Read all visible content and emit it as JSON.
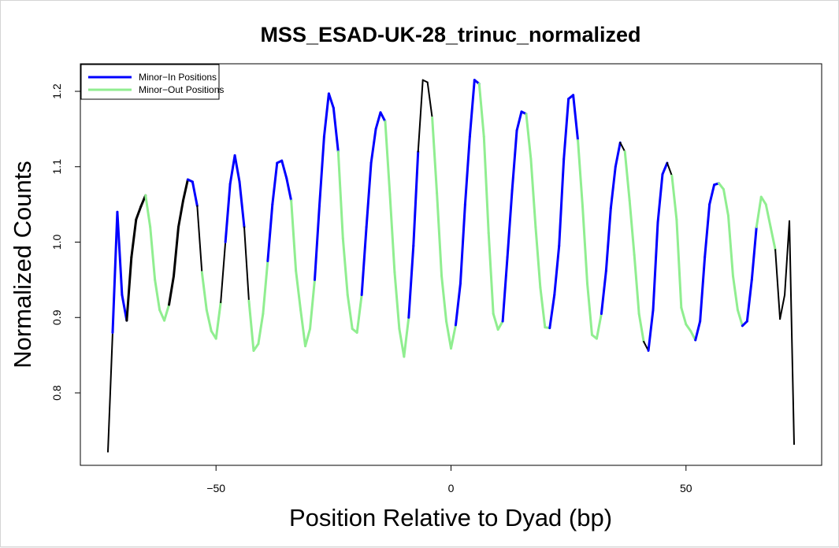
{
  "chart_data": {
    "type": "line",
    "title": "MSS_ESAD-UK-28_trinuc_normalized",
    "xlabel": "Position Relative to Dyad (bp)",
    "ylabel": "Normalized Counts",
    "xlim": [
      -73,
      73
    ],
    "ylim": [
      0.7,
      1.22
    ],
    "x_ticks": [
      -50,
      0,
      50
    ],
    "x_tick_labels": [
      "−50",
      "0",
      "50"
    ],
    "y_ticks": [
      0.8,
      0.9,
      1.0,
      1.1,
      1.2
    ],
    "y_tick_labels": [
      "0.8",
      "0.9",
      "1.0",
      "1.1",
      "1.2"
    ],
    "legend": {
      "position": "top-left",
      "entries": [
        {
          "label": "Minor−In Positions",
          "color": "#0000ff"
        },
        {
          "label": "Minor−Out Positions",
          "color": "#90ee90"
        }
      ]
    },
    "colors": {
      "minor_in": "#0000ff",
      "minor_out": "#90ee90",
      "other": "#000000"
    },
    "x": [
      -73,
      -72,
      -71,
      -70,
      -69,
      -68,
      -67,
      -66,
      -65,
      -64,
      -63,
      -62,
      -61,
      -60,
      -59,
      -58,
      -57,
      -56,
      -55,
      -54,
      -53,
      -52,
      -51,
      -50,
      -49,
      -48,
      -47,
      -46,
      -45,
      -44,
      -43,
      -42,
      -41,
      -40,
      -39,
      -38,
      -37,
      -36,
      -35,
      -34,
      -33,
      -32,
      -31,
      -30,
      -29,
      -28,
      -27,
      -26,
      -25,
      -24,
      -23,
      -22,
      -21,
      -20,
      -19,
      -18,
      -17,
      -16,
      -15,
      -14,
      -13,
      -12,
      -11,
      -10,
      -9,
      -8,
      -7,
      -6,
      -5,
      -4,
      -3,
      -2,
      -1,
      0,
      1,
      2,
      3,
      4,
      5,
      6,
      7,
      8,
      9,
      10,
      11,
      12,
      13,
      14,
      15,
      16,
      17,
      18,
      19,
      20,
      21,
      22,
      23,
      24,
      25,
      26,
      27,
      28,
      29,
      30,
      31,
      32,
      33,
      34,
      35,
      36,
      37,
      38,
      39,
      40,
      41,
      42,
      43,
      44,
      45,
      46,
      47,
      48,
      49,
      50,
      51,
      52,
      53,
      54,
      55,
      56,
      57,
      58,
      59,
      60,
      61,
      62,
      63,
      64,
      65,
      66,
      67,
      68,
      69,
      70,
      71,
      72,
      73
    ],
    "series": [
      {
        "name": "Minor−In Positions",
        "values": [
          0.722,
          0.88,
          1.04,
          0.93,
          0.896,
          0.98,
          1.03,
          1.047,
          1.062,
          1.02,
          0.95,
          0.91,
          0.896,
          0.917,
          0.955,
          1.02,
          1.055,
          1.083,
          1.08,
          1.048,
          0.96,
          0.91,
          0.882,
          0.872,
          0.92,
          1.0,
          1.077,
          1.115,
          1.08,
          1.02,
          0.922,
          0.856,
          0.865,
          0.905,
          0.975,
          1.05,
          1.105,
          1.108,
          1.085,
          1.055,
          0.962,
          0.91,
          0.862,
          0.885,
          0.95,
          1.048,
          1.14,
          1.197,
          1.178,
          1.12,
          1.005,
          0.93,
          0.885,
          0.88,
          0.93,
          1.02,
          1.105,
          1.15,
          1.172,
          1.16,
          1.063,
          0.96,
          0.885,
          0.848,
          0.9,
          0.995,
          1.12,
          1.215,
          1.212,
          1.165,
          1.065,
          0.955,
          0.895,
          0.859,
          0.89,
          0.945,
          1.05,
          1.14,
          1.215,
          1.21,
          1.14,
          1.012,
          0.905,
          0.884,
          0.895,
          0.98,
          1.068,
          1.148,
          1.173,
          1.17,
          1.11,
          1.02,
          0.94,
          0.887,
          0.886,
          0.93,
          0.995,
          1.11,
          1.19,
          1.195,
          1.135,
          1.047,
          0.945,
          0.877,
          0.872,
          0.905,
          0.962,
          1.045,
          1.1,
          1.132,
          1.12,
          1.055,
          0.983,
          0.905,
          0.868,
          0.856,
          0.91,
          1.026,
          1.09,
          1.105,
          1.088,
          1.03,
          0.913,
          0.891,
          0.882,
          0.87,
          0.895,
          0.98,
          1.05,
          1.076,
          1.078,
          1.07,
          1.035,
          0.955,
          0.91,
          0.889,
          0.895,
          0.95,
          1.02,
          1.06,
          1.05,
          1.02,
          0.99,
          0.898,
          0.93,
          1.028,
          0.732
        ]
      }
    ],
    "segment_roles": "MIIIBBBBOOOOOBBBBIIMOOOOMIIIIMOOOOIIIIIOOOOOIIIIIOOOOOIIIIIOOOOOIIMMMOOOOOIIIIIOOOOOIIIIIOOOOOIIIIIIOOOOOIIIIMOOOOMIIIIMOOOOOIIIIIOOOOOIIIOOOOMMM"
  }
}
